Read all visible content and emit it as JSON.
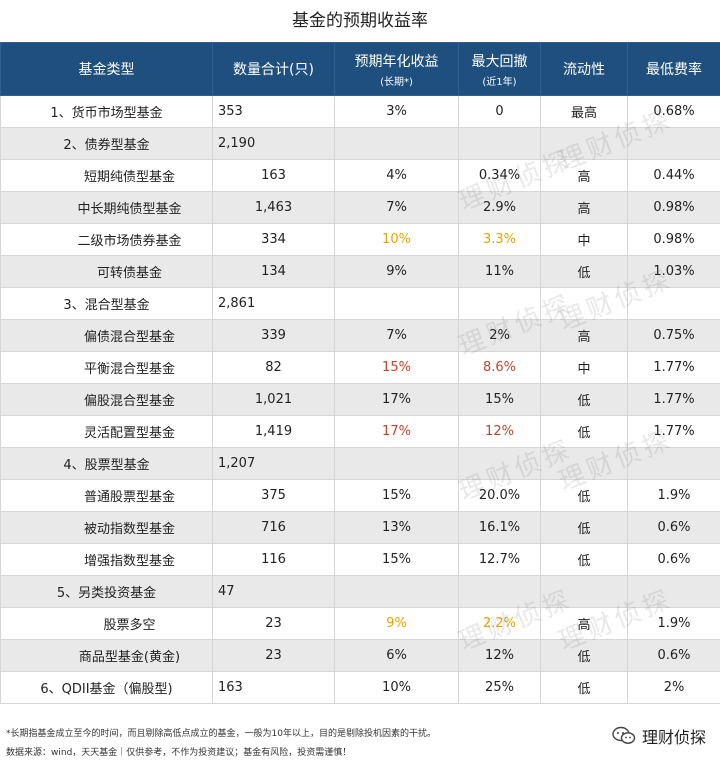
{
  "title": "基金的预期收益率",
  "header": {
    "type": "基金类型",
    "count": "数量合计(只)",
    "return": "预期年化收益",
    "return_sub": "(长期*)",
    "drawdown": "最大回撤",
    "drawdown_sub": "(近1年)",
    "liquidity": "流动性",
    "fee": "最低费率"
  },
  "rows": [
    {
      "name": "1、货币市场型基金",
      "level": 0,
      "count": "353",
      "return": "3%",
      "drawdown": "0",
      "liquidity": "最高",
      "fee": "0.68%"
    },
    {
      "name": "2、债券型基金",
      "level": 0,
      "count": "2,190",
      "return": "",
      "drawdown": "",
      "liquidity": "",
      "fee": ""
    },
    {
      "name": "短期纯债型基金",
      "level": 1,
      "count": "163",
      "return": "4%",
      "drawdown": "0.34%",
      "liquidity": "高",
      "fee": "0.44%"
    },
    {
      "name": "中长期纯债型基金",
      "level": 1,
      "count": "1,463",
      "return": "7%",
      "drawdown": "2.9%",
      "liquidity": "高",
      "fee": "0.98%"
    },
    {
      "name": "二级市场债券基金",
      "level": 1,
      "count": "334",
      "return": "10%",
      "drawdown": "3.3%",
      "liquidity": "中",
      "fee": "0.98%",
      "hl": "yellow"
    },
    {
      "name": "可转债基金",
      "level": 1,
      "count": "134",
      "return": "9%",
      "drawdown": "11%",
      "liquidity": "低",
      "fee": "1.03%"
    },
    {
      "name": "3、混合型基金",
      "level": 0,
      "count": "2,861",
      "return": "",
      "drawdown": "",
      "liquidity": "",
      "fee": ""
    },
    {
      "name": "偏债混合型基金",
      "level": 1,
      "count": "339",
      "return": "7%",
      "drawdown": "2%",
      "liquidity": "高",
      "fee": "0.75%"
    },
    {
      "name": "平衡混合型基金",
      "level": 1,
      "count": "82",
      "return": "15%",
      "drawdown": "8.6%",
      "liquidity": "中",
      "fee": "1.77%",
      "hl": "red"
    },
    {
      "name": "偏股混合型基金",
      "level": 1,
      "count": "1,021",
      "return": "17%",
      "drawdown": "15%",
      "liquidity": "低",
      "fee": "1.77%"
    },
    {
      "name": "灵活配置型基金",
      "level": 1,
      "count": "1,419",
      "return": "17%",
      "drawdown": "12%",
      "liquidity": "低",
      "fee": "1.77%",
      "hl": "red"
    },
    {
      "name": "4、股票型基金",
      "level": 0,
      "count": "1,207",
      "return": "",
      "drawdown": "",
      "liquidity": "",
      "fee": ""
    },
    {
      "name": "普通股票型基金",
      "level": 1,
      "count": "375",
      "return": "15%",
      "drawdown": "20.0%",
      "liquidity": "低",
      "fee": "1.9%"
    },
    {
      "name": "被动指数型基金",
      "level": 1,
      "count": "716",
      "return": "13%",
      "drawdown": "16.1%",
      "liquidity": "低",
      "fee": "0.6%"
    },
    {
      "name": "增强指数型基金",
      "level": 1,
      "count": "116",
      "return": "15%",
      "drawdown": "12.7%",
      "liquidity": "低",
      "fee": "0.6%"
    },
    {
      "name": "5、另类投资基金",
      "level": 0,
      "count": "47",
      "return": "",
      "drawdown": "",
      "liquidity": "",
      "fee": ""
    },
    {
      "name": "股票多空",
      "level": 1,
      "count": "23",
      "return": "9%",
      "drawdown": "2.2%",
      "liquidity": "高",
      "fee": "1.9%",
      "hl": "yellow"
    },
    {
      "name": "商品型基金(黄金)",
      "level": 1,
      "count": "23",
      "return": "6%",
      "drawdown": "12%",
      "liquidity": "低",
      "fee": "0.6%"
    },
    {
      "name": "6、QDII基金（偏股型)",
      "level": 0,
      "count": "163",
      "return": "10%",
      "drawdown": "25%",
      "liquidity": "低",
      "fee": "2%"
    }
  ],
  "watermark": "理财侦探",
  "footnote": "*长期指基金成立至今的时间，而且剔除高低点成立的基金，一般为10年以上，目的是剔除投机因素的干扰。",
  "source": "数据来源：wind，天天基金｜仅供参考，不作为投资建议；基金有风险，投资需谨慎！",
  "brand": "理财侦探",
  "brand_icon": "wechat-icon",
  "colors": {
    "header_bg": "#1f4f7f",
    "highlight_yellow": "#e8a400",
    "highlight_red": "#c9402a"
  }
}
